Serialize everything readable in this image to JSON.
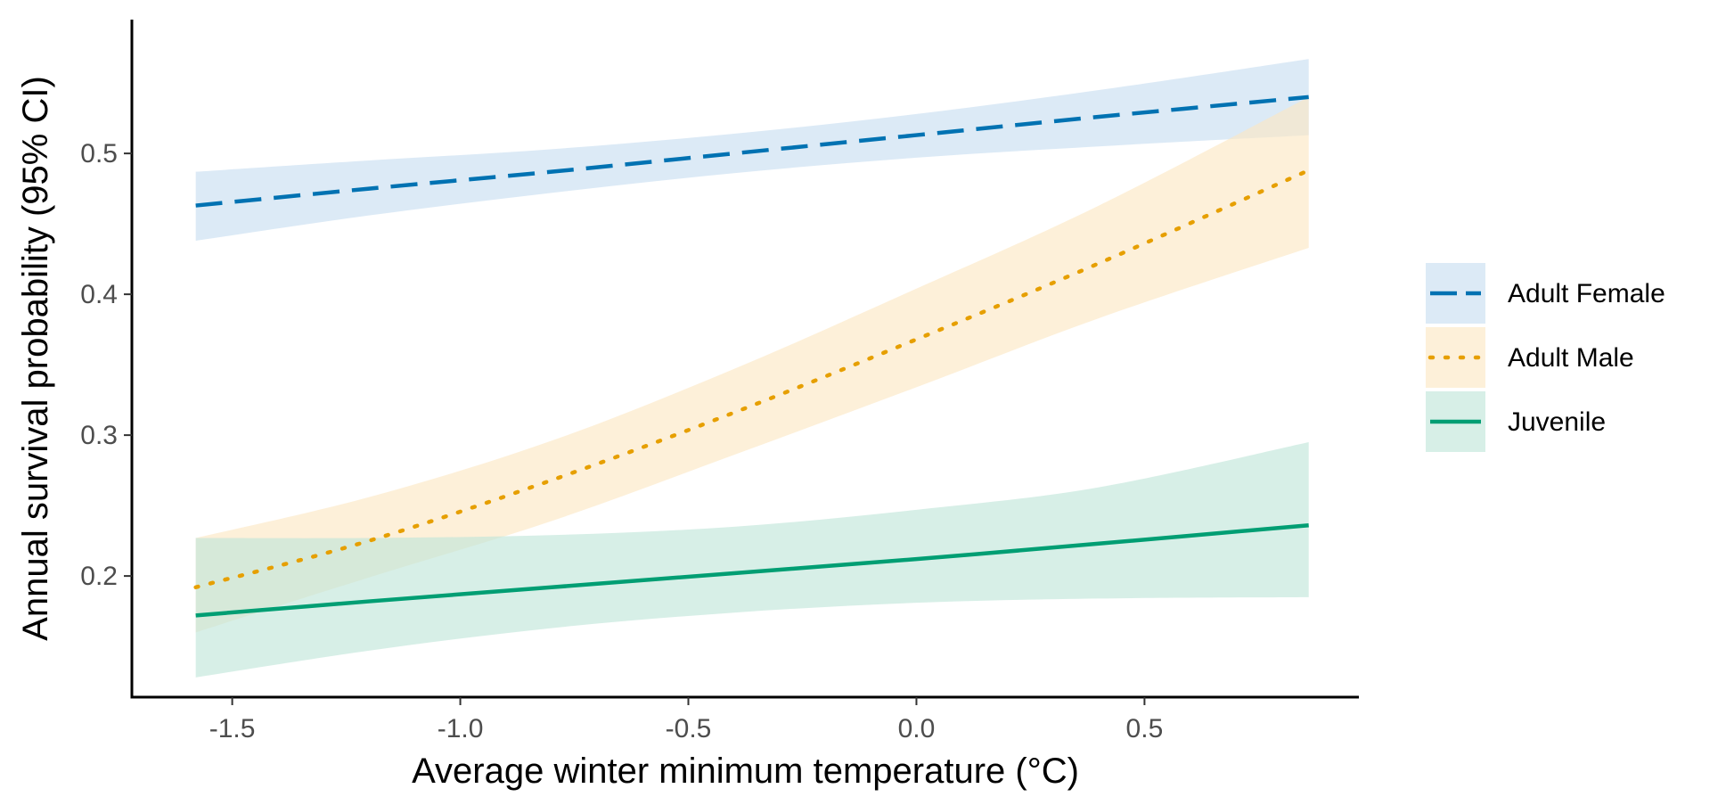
{
  "chart_data": {
    "type": "line",
    "title": "",
    "xlabel": "Average winter minimum temperature (°C)",
    "ylabel": "Annual survival probability (95% CI)",
    "xlim": [
      -1.72,
      0.97
    ],
    "ylim": [
      0.114,
      0.595
    ],
    "x_ticks": [
      -1.5,
      -1.0,
      -0.5,
      0.0,
      0.5
    ],
    "x_tick_labels": [
      "-1.5",
      "-1.0",
      "-0.5",
      "0.0",
      "0.5"
    ],
    "y_ticks": [
      0.2,
      0.3,
      0.4,
      0.5
    ],
    "y_tick_labels": [
      "0.2",
      "0.3",
      "0.4",
      "0.5"
    ],
    "grid": false,
    "legend_position": "right",
    "x": [
      -1.58,
      -1.2,
      -0.8,
      -0.4,
      0.0,
      0.4,
      0.86
    ],
    "series": [
      {
        "name": "Adult Female",
        "line_style": "dashed",
        "color": "#0072B2",
        "fill_color": "#C6DDF0",
        "values": [
          0.463,
          0.475,
          0.487,
          0.5,
          0.513,
          0.526,
          0.54
        ],
        "lower": [
          0.438,
          0.456,
          0.472,
          0.486,
          0.497,
          0.505,
          0.513
        ],
        "upper": [
          0.487,
          0.495,
          0.503,
          0.514,
          0.528,
          0.545,
          0.567
        ]
      },
      {
        "name": "Adult Male",
        "line_style": "dotted",
        "color": "#E69F00",
        "fill_color": "#FBE7C2",
        "values": [
          0.192,
          0.225,
          0.268,
          0.316,
          0.368,
          0.422,
          0.488
        ],
        "lower": [
          0.16,
          0.199,
          0.239,
          0.286,
          0.334,
          0.383,
          0.433
        ],
        "upper": [
          0.227,
          0.256,
          0.296,
          0.347,
          0.404,
          0.463,
          0.54
        ]
      },
      {
        "name": "Juvenile",
        "line_style": "solid",
        "color": "#009E73",
        "fill_color": "#BFE5D8",
        "values": [
          0.172,
          0.182,
          0.192,
          0.202,
          0.212,
          0.223,
          0.236
        ],
        "lower": [
          0.128,
          0.147,
          0.163,
          0.174,
          0.181,
          0.184,
          0.185
        ],
        "upper": [
          0.227,
          0.227,
          0.229,
          0.235,
          0.247,
          0.263,
          0.295
        ]
      }
    ]
  }
}
